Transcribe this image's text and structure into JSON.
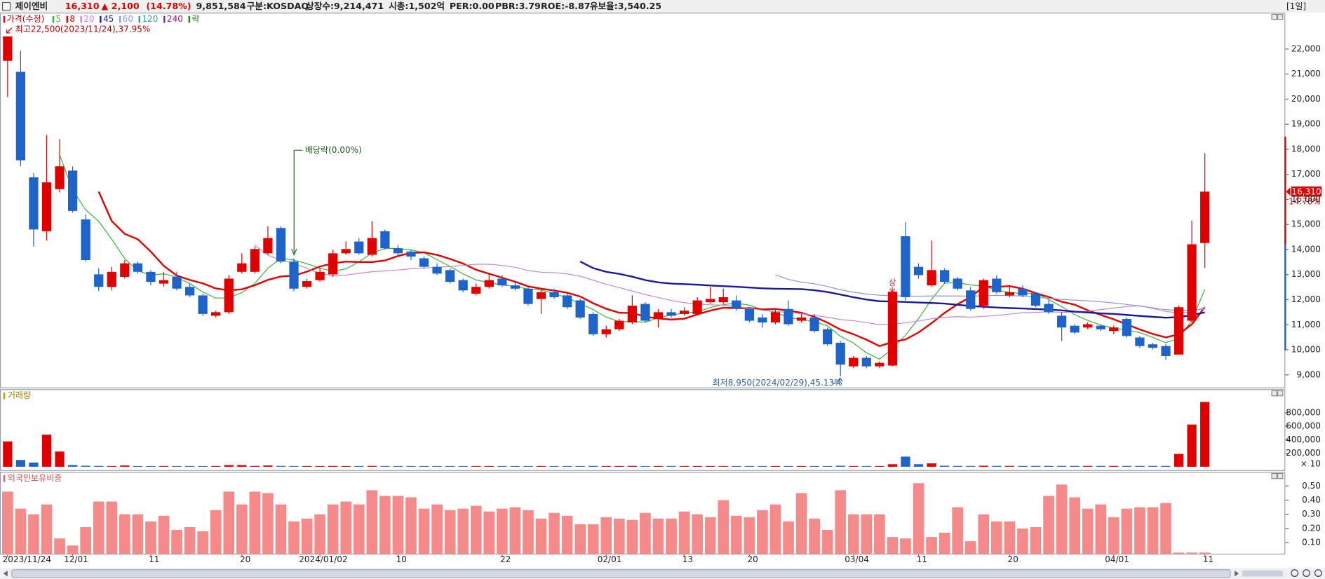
{
  "header": {
    "name": "제이엔비",
    "price": "16,310",
    "change": "▲ 2,100",
    "change_pct": "(14.78%)",
    "volume": "9,851,584",
    "market": "구분:KOSDAQ",
    "shares": "상장수:9,214,471",
    "cap": "시총:1,502억",
    "per": "PER:0.00",
    "pbr": "PBR:3.79",
    "roe": "ROE:-8.87",
    "reserve": "유보율:3,540.25",
    "period": "[1일]"
  },
  "chart_data": [
    {
      "type": "candlestick",
      "legend_label": "가격(수정)",
      "legend_extra": "락",
      "current_price_pct": "14.78%",
      "up_color": "#e00000",
      "down_color": "#1e64c8",
      "moving_averages": [
        {
          "period": 5,
          "color": "#3cb43c"
        },
        {
          "period": 8,
          "color": "#e00000"
        },
        {
          "period": 20,
          "color": "#c888c8"
        },
        {
          "period": 45,
          "color": "#1a1a9a"
        },
        {
          "period": 60,
          "color": "#8898d8"
        },
        {
          "period": 120,
          "color": "#30a0a0"
        },
        {
          "period": 240,
          "color": "#902090"
        }
      ],
      "annotations": {
        "high": "최고22,500(2023/11/24),37.95%",
        "low": "최저8,950(2024/02/29),45.13%",
        "dividend": "배당락(0.00%)",
        "limit_up": "상"
      },
      "ylim": [
        8500,
        23450
      ],
      "yticks": [
        {
          "value": 9000,
          "label": "9,000"
        },
        {
          "value": 10000,
          "label": "10,000"
        },
        {
          "value": 11000,
          "label": "11,000"
        },
        {
          "value": 12000,
          "label": "12,000"
        },
        {
          "value": 13000,
          "label": "13,000"
        },
        {
          "value": 14000,
          "label": "14,000"
        },
        {
          "value": 15000,
          "label": "15,000"
        },
        {
          "value": 16000,
          "label": "16,000"
        },
        {
          "value": 17000,
          "label": "17,000"
        },
        {
          "value": 18000,
          "label": "18,000"
        },
        {
          "value": 19000,
          "label": "19,000"
        },
        {
          "value": 20000,
          "label": "20,000"
        },
        {
          "value": 21000,
          "label": "21,000"
        },
        {
          "value": 22000,
          "label": "22,000"
        }
      ],
      "ohlc": [
        [
          21530,
          22500,
          20080,
          22500
        ],
        [
          21090,
          21930,
          17320,
          17560
        ],
        [
          16880,
          17050,
          14120,
          14800
        ],
        [
          14730,
          18570,
          14360,
          16680
        ],
        [
          16410,
          18400,
          16280,
          17320
        ],
        [
          17150,
          17320,
          15470,
          15540
        ],
        [
          15200,
          15400,
          13520,
          13580
        ],
        [
          13010,
          13250,
          12340,
          12510
        ],
        [
          12510,
          13310,
          12370,
          13110
        ],
        [
          12910,
          13580,
          12840,
          13450
        ],
        [
          13450,
          13520,
          13040,
          13110
        ],
        [
          13110,
          13180,
          12570,
          12710
        ],
        [
          12640,
          13110,
          12510,
          12780
        ],
        [
          12910,
          13110,
          12370,
          12440
        ],
        [
          12510,
          12640,
          12100,
          12170
        ],
        [
          12170,
          12240,
          11360,
          11430
        ],
        [
          11360,
          11560,
          11290,
          11500
        ],
        [
          11500,
          12980,
          11430,
          12840
        ],
        [
          13110,
          13850,
          13040,
          13450
        ],
        [
          13110,
          14120,
          13040,
          14020
        ],
        [
          13850,
          14930,
          13790,
          14460
        ],
        [
          14860,
          14930,
          13450,
          13520
        ],
        [
          13520,
          13650,
          12340,
          12440
        ],
        [
          12510,
          12840,
          12440,
          12740
        ],
        [
          12780,
          13250,
          12710,
          13110
        ],
        [
          13010,
          13990,
          12910,
          13850
        ],
        [
          13850,
          14320,
          13790,
          14020
        ],
        [
          14320,
          14460,
          13790,
          13850
        ],
        [
          13790,
          15130,
          13720,
          14460
        ],
        [
          14730,
          14800,
          13990,
          14050
        ],
        [
          14050,
          14190,
          13790,
          13850
        ],
        [
          13920,
          13990,
          13580,
          13720
        ],
        [
          13650,
          13720,
          13250,
          13310
        ],
        [
          13310,
          13450,
          12980,
          13040
        ],
        [
          13180,
          13250,
          12640,
          12710
        ],
        [
          12780,
          12840,
          12300,
          12370
        ],
        [
          12240,
          12640,
          12170,
          12510
        ],
        [
          12510,
          13040,
          12440,
          12780
        ],
        [
          12840,
          12980,
          12510,
          12570
        ],
        [
          12570,
          12710,
          12370,
          12440
        ],
        [
          12440,
          12510,
          11760,
          11830
        ],
        [
          12030,
          12370,
          11430,
          12300
        ],
        [
          12300,
          12440,
          12030,
          12100
        ],
        [
          12170,
          12240,
          11630,
          11700
        ],
        [
          11970,
          12030,
          11230,
          11290
        ],
        [
          11430,
          11500,
          10550,
          10620
        ],
        [
          10620,
          10960,
          10490,
          10820
        ],
        [
          10820,
          11230,
          10750,
          11160
        ],
        [
          11090,
          12170,
          11020,
          11760
        ],
        [
          11830,
          11900,
          11090,
          11160
        ],
        [
          11230,
          11630,
          10890,
          11500
        ],
        [
          11500,
          11630,
          11290,
          11360
        ],
        [
          11430,
          11700,
          11360,
          11560
        ],
        [
          11430,
          12100,
          11360,
          11970
        ],
        [
          11900,
          12510,
          11830,
          12030
        ],
        [
          11900,
          12440,
          11830,
          12100
        ],
        [
          11970,
          12170,
          11560,
          11630
        ],
        [
          11630,
          11700,
          11090,
          11160
        ],
        [
          11290,
          11430,
          10890,
          11090
        ],
        [
          11090,
          11630,
          11020,
          11500
        ],
        [
          11630,
          11970,
          10960,
          11020
        ],
        [
          11160,
          11430,
          11090,
          11290
        ],
        [
          11290,
          11430,
          10690,
          10750
        ],
        [
          10820,
          10890,
          10150,
          10220
        ],
        [
          10280,
          10350,
          8950,
          9410
        ],
        [
          9340,
          9750,
          9270,
          9680
        ],
        [
          9680,
          9750,
          9270,
          9340
        ],
        [
          9340,
          9540,
          9270,
          9480
        ],
        [
          9370,
          12320,
          9340,
          12320
        ],
        [
          14530,
          15100,
          11970,
          12100
        ],
        [
          13310,
          13450,
          12840,
          12980
        ],
        [
          12570,
          14360,
          12510,
          13180
        ],
        [
          13180,
          13250,
          12640,
          12710
        ],
        [
          12840,
          12910,
          12370,
          12440
        ],
        [
          12370,
          12510,
          11560,
          11630
        ],
        [
          11760,
          12840,
          11630,
          12780
        ],
        [
          12840,
          12980,
          12240,
          12300
        ],
        [
          12170,
          12510,
          12100,
          12300
        ],
        [
          12440,
          12570,
          12100,
          12170
        ],
        [
          12240,
          12300,
          11700,
          11760
        ],
        [
          11830,
          11970,
          11430,
          11500
        ],
        [
          11360,
          11500,
          10350,
          10890
        ],
        [
          10960,
          11020,
          10620,
          10690
        ],
        [
          10890,
          11090,
          10820,
          11020
        ],
        [
          10960,
          11020,
          10750,
          10820
        ],
        [
          10750,
          10960,
          10620,
          10890
        ],
        [
          11230,
          11290,
          10490,
          10550
        ],
        [
          10490,
          10550,
          10080,
          10150
        ],
        [
          10220,
          10280,
          10010,
          10080
        ],
        [
          10150,
          10220,
          9610,
          9750
        ],
        [
          9810,
          11760,
          9810,
          11700
        ],
        [
          11160,
          15150,
          11090,
          14210
        ],
        [
          14260,
          17850,
          13270,
          16310
        ]
      ]
    },
    {
      "type": "volume",
      "title": "거래량",
      "unit_label": "× 10",
      "ylim": [
        0,
        1050000
      ],
      "yticks": [
        {
          "value": 200000,
          "label": "200,000"
        },
        {
          "value": 400000,
          "label": "400,000"
        },
        {
          "value": 600000,
          "label": "600,000"
        },
        {
          "value": 800000,
          "label": "800,000"
        }
      ],
      "values": [
        375000,
        100000,
        62000,
        475000,
        225000,
        25000,
        15000,
        12000,
        10000,
        20000,
        10000,
        10000,
        10000,
        10000,
        10000,
        10000,
        10000,
        25000,
        25000,
        12000,
        20000,
        12000,
        10000,
        10000,
        10000,
        12000,
        10000,
        10000,
        12000,
        10000,
        10000,
        10000,
        10000,
        10000,
        10000,
        10000,
        10000,
        10000,
        10000,
        10000,
        10000,
        10000,
        10000,
        10000,
        10000,
        12000,
        10000,
        10000,
        12000,
        10000,
        10000,
        10000,
        10000,
        10000,
        10000,
        10000,
        10000,
        10000,
        10000,
        10000,
        10000,
        10000,
        10000,
        10000,
        15000,
        10000,
        10000,
        10000,
        37000,
        150000,
        37000,
        50000,
        15000,
        12000,
        12000,
        15000,
        12000,
        12000,
        12000,
        12000,
        12000,
        12000,
        12000,
        12000,
        12000,
        12000,
        12000,
        12000,
        12000,
        12000,
        190000,
        625000,
        960000
      ]
    },
    {
      "type": "bar",
      "title": "외국인보유비중",
      "color": "#f58a8a",
      "ylim": [
        0.02,
        0.6
      ],
      "yticks": [
        {
          "value": 0.1,
          "label": "0.10"
        },
        {
          "value": 0.2,
          "label": "0.20"
        },
        {
          "value": 0.3,
          "label": "0.30"
        },
        {
          "value": 0.4,
          "label": "0.40"
        },
        {
          "value": 0.5,
          "label": "0.50"
        }
      ],
      "values": [
        0.46,
        0.34,
        0.3,
        0.37,
        0.13,
        0.08,
        0.21,
        0.39,
        0.39,
        0.3,
        0.3,
        0.25,
        0.29,
        0.19,
        0.21,
        0.18,
        0.33,
        0.46,
        0.37,
        0.46,
        0.45,
        0.37,
        0.25,
        0.27,
        0.3,
        0.37,
        0.39,
        0.37,
        0.47,
        0.43,
        0.43,
        0.42,
        0.34,
        0.37,
        0.33,
        0.34,
        0.36,
        0.32,
        0.34,
        0.35,
        0.33,
        0.27,
        0.31,
        0.29,
        0.23,
        0.23,
        0.28,
        0.27,
        0.26,
        0.31,
        0.27,
        0.27,
        0.32,
        0.3,
        0.28,
        0.4,
        0.29,
        0.28,
        0.33,
        0.37,
        0.25,
        0.45,
        0.27,
        0.19,
        0.47,
        0.3,
        0.3,
        0.3,
        0.14,
        0.13,
        0.52,
        0.14,
        0.17,
        0.35,
        0.11,
        0.3,
        0.25,
        0.25,
        0.2,
        0.21,
        0.43,
        0.51,
        0.42,
        0.34,
        0.37,
        0.28,
        0.34,
        0.35,
        0.35,
        0.38,
        0.03,
        0.03,
        0.03
      ],
      "categories": [
        "2023/11/24",
        null,
        null,
        null,
        null,
        "12/01",
        null,
        null,
        null,
        null,
        null,
        "11",
        null,
        null,
        null,
        null,
        null,
        null,
        "20",
        null,
        null,
        null,
        null,
        null,
        "2024/01/02",
        null,
        null,
        null,
        null,
        null,
        "10",
        null,
        null,
        null,
        null,
        null,
        null,
        null,
        "22",
        null,
        null,
        null,
        null,
        null,
        null,
        null,
        "02/01",
        null,
        null,
        null,
        null,
        null,
        "13",
        null,
        null,
        null,
        null,
        "20",
        null,
        null,
        null,
        null,
        null,
        null,
        null,
        "03/04",
        null,
        null,
        null,
        null,
        "11",
        null,
        null,
        null,
        null,
        null,
        null,
        "20",
        null,
        null,
        null,
        null,
        null,
        null,
        null,
        "04/01",
        null,
        null,
        null,
        null,
        null,
        null,
        "11"
      ]
    }
  ]
}
